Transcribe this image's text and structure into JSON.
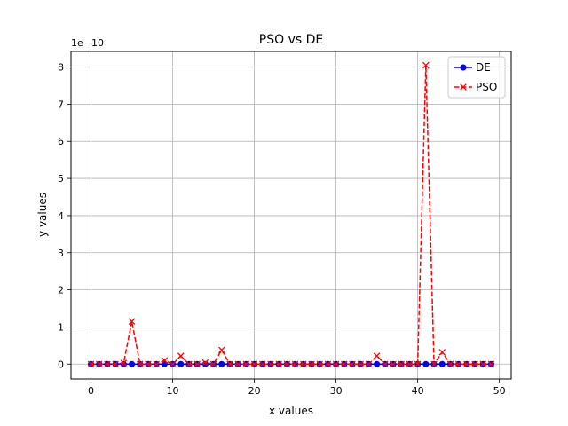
{
  "chart_data": {
    "type": "line",
    "title": "PSO vs DE",
    "xlabel": "x values",
    "ylabel": "y values",
    "y_offset_label": "1e−10",
    "xlim": [
      -2.45,
      51.45
    ],
    "ylim": [
      -0.4,
      8.42
    ],
    "xticks": [
      0,
      10,
      20,
      30,
      40,
      50
    ],
    "yticks": [
      0,
      1,
      2,
      3,
      4,
      5,
      6,
      7,
      8
    ],
    "grid": true,
    "legend_position": "upper-right",
    "x": [
      0,
      1,
      2,
      3,
      4,
      5,
      6,
      7,
      8,
      9,
      10,
      11,
      12,
      13,
      14,
      15,
      16,
      17,
      18,
      19,
      20,
      21,
      22,
      23,
      24,
      25,
      26,
      27,
      28,
      29,
      30,
      31,
      32,
      33,
      34,
      35,
      36,
      37,
      38,
      39,
      40,
      41,
      42,
      43,
      44,
      45,
      46,
      47,
      48,
      49
    ],
    "series": [
      {
        "name": "DE",
        "color": "#0000ff",
        "marker": "circle",
        "linestyle": "solid",
        "values": [
          0,
          0,
          0,
          0,
          0,
          0,
          0,
          0,
          0,
          0,
          0,
          0,
          0,
          0,
          0,
          0,
          0,
          0,
          0,
          0,
          0,
          0,
          0,
          0,
          0,
          0,
          0,
          0,
          0,
          0,
          0,
          0,
          0,
          0,
          0,
          0,
          0,
          0,
          0,
          0,
          0,
          0,
          0,
          0,
          0,
          0,
          0,
          0,
          0,
          0
        ]
      },
      {
        "name": "PSO",
        "color": "#ff0000",
        "marker": "x",
        "linestyle": "dashed",
        "values": [
          0,
          0,
          0,
          0,
          0.03,
          1.15,
          0,
          0,
          0,
          0.1,
          0,
          0.22,
          0,
          0,
          0.04,
          0,
          0.38,
          0,
          0,
          0,
          0,
          0,
          0,
          0,
          0,
          0,
          0,
          0,
          0,
          0,
          0,
          0,
          0,
          0,
          0,
          0.22,
          0,
          0,
          0,
          0,
          0,
          8.05,
          0,
          0.32,
          0,
          0,
          0,
          0,
          0,
          0
        ]
      }
    ]
  }
}
